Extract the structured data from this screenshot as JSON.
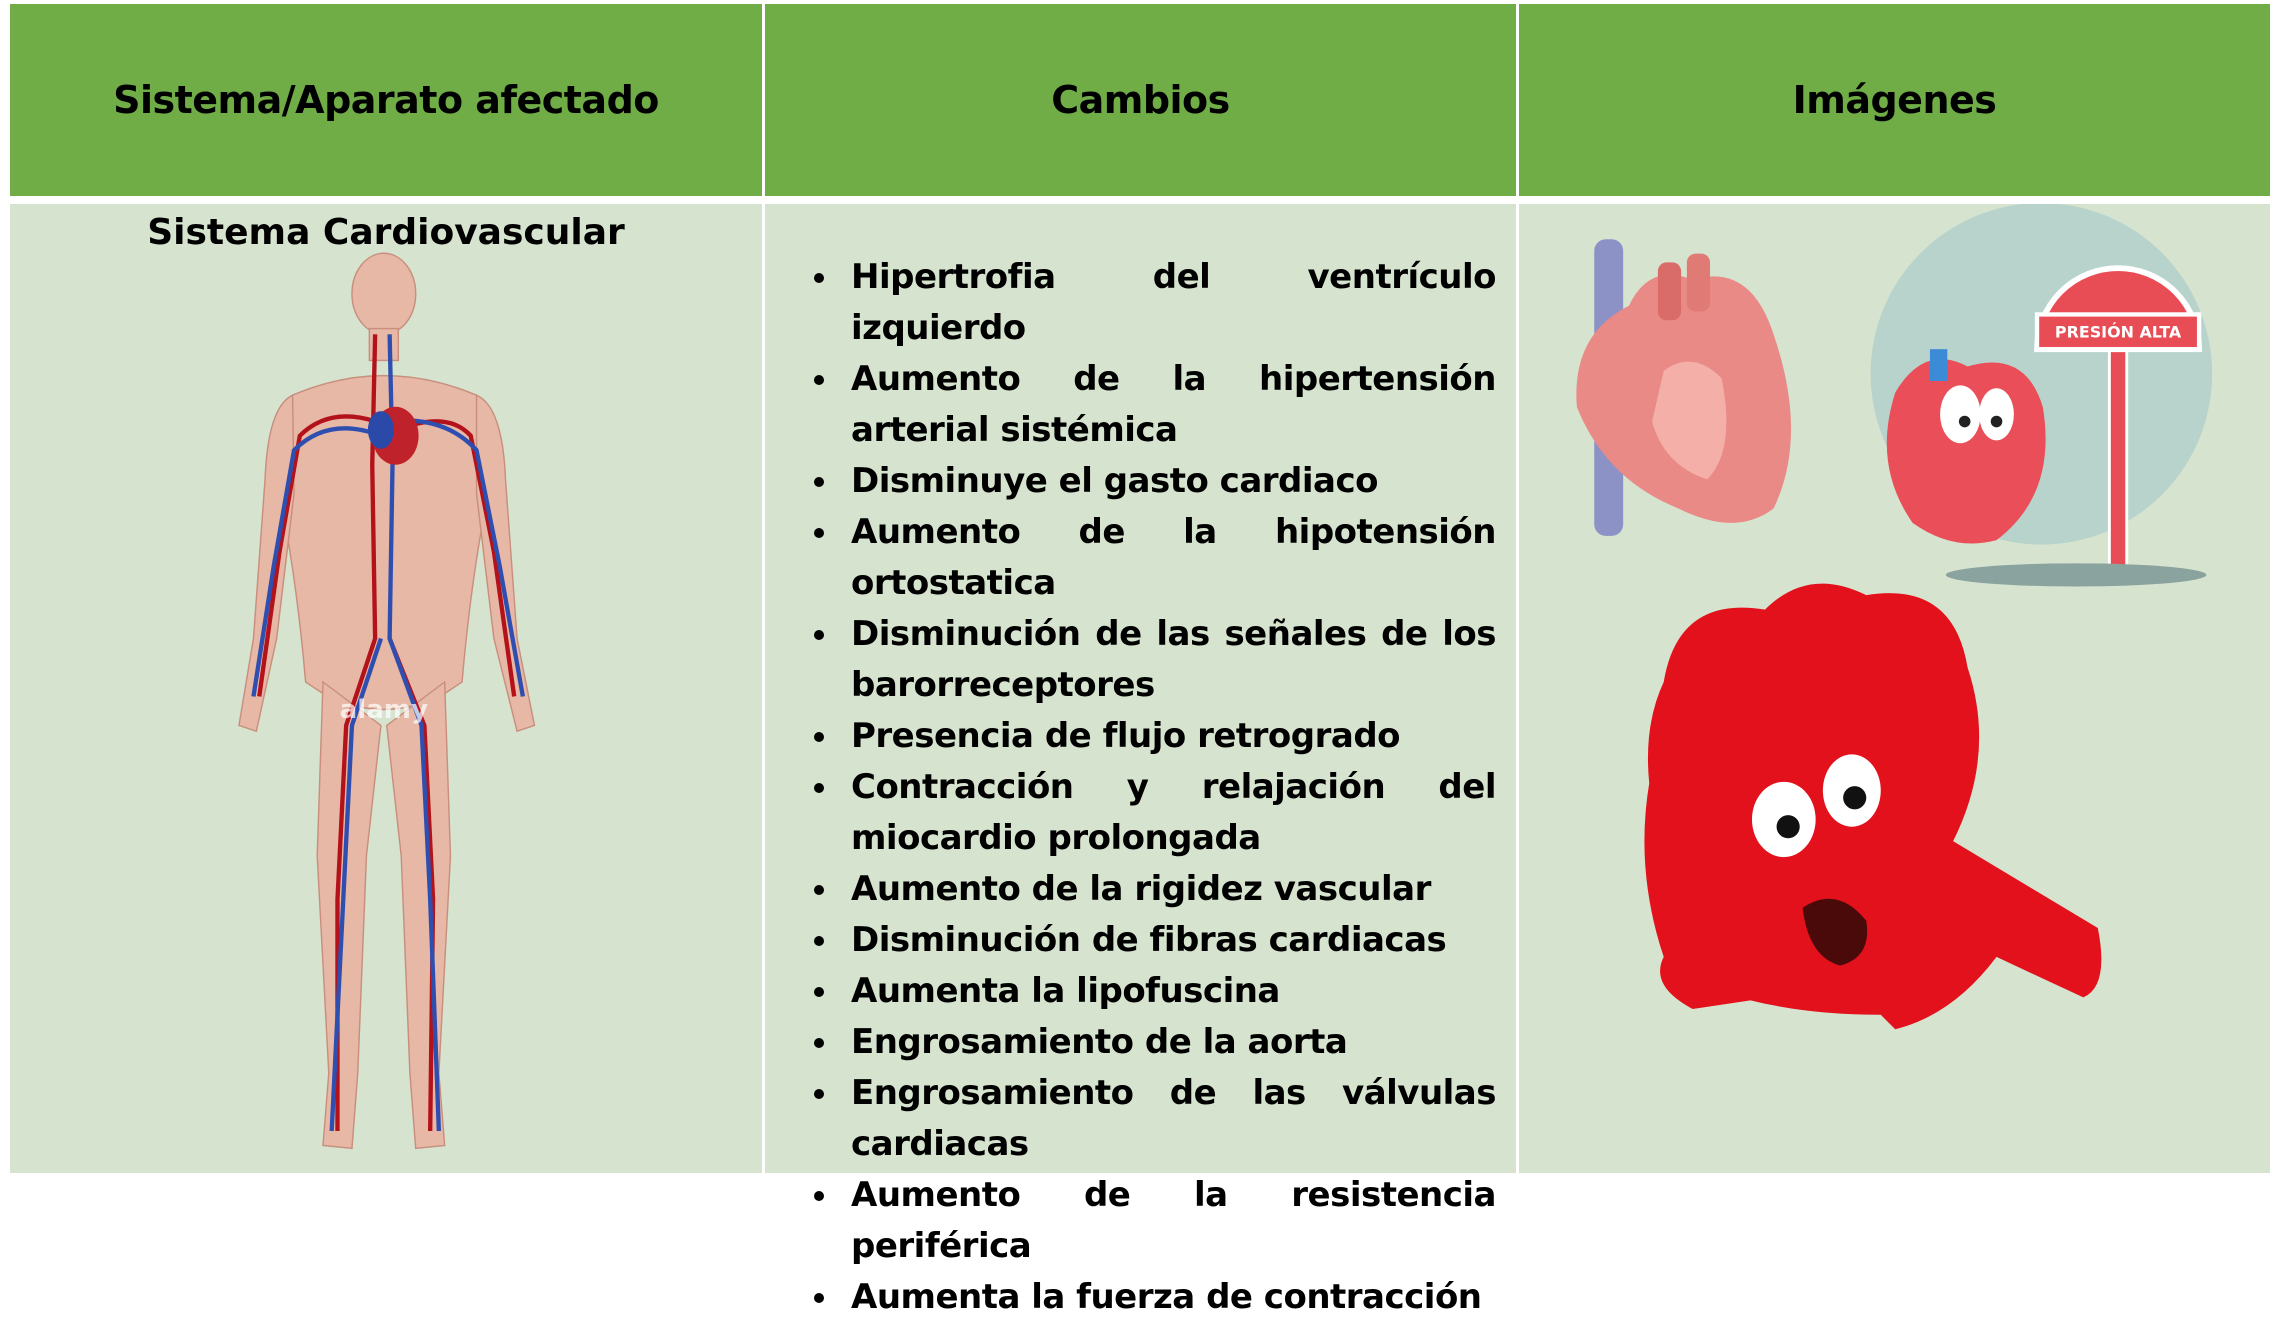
{
  "table": {
    "header": [
      "Sistema/Aparato afectado",
      "Cambios",
      "Imágenes"
    ],
    "rows": [
      {
        "system": "Sistema Cardiovascular",
        "changes": [
          "Hipertrofia del ventrículo izquierdo",
          "Aumento de la hipertensión arterial sistémica",
          "Disminuye el gasto cardiaco",
          "Aumento de la hipotensión ortostatica",
          "Disminución de las señales de los barorreceptores",
          "Presencia de flujo retrogrado",
          "Contracción y relajación del miocardio prolongada",
          "Aumento de la rigidez vascular",
          "Disminución de fibras cardiacas",
          "Aumenta la lipofuscina",
          "Engrosamiento de la aorta",
          "Engrosamiento de las válvulas cardiacas",
          "Aumento de la resistencia periférica",
          "Aumenta la fuerza de contracción"
        ],
        "watermark": "alamy",
        "sign": "PRESIÓN ALTA"
      }
    ]
  }
}
